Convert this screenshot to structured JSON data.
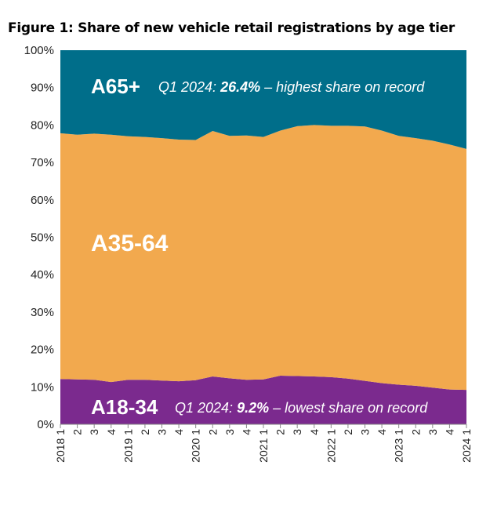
{
  "title": "Figure 1: Share of new vehicle retail registrations by age tier",
  "chart_data": {
    "type": "area",
    "stacked": true,
    "ylim": [
      0,
      100
    ],
    "yunit": "%",
    "yticks": [
      "0%",
      "10%",
      "20%",
      "30%",
      "40%",
      "50%",
      "60%",
      "70%",
      "80%",
      "90%",
      "100%"
    ],
    "x": [
      "2018 1",
      "2",
      "3",
      "4",
      "2019 1",
      "2",
      "3",
      "4",
      "2020 1",
      "2",
      "3",
      "4",
      "2021 1",
      "2",
      "3",
      "4",
      "2022 1",
      "2",
      "3",
      "4",
      "2023 1",
      "2",
      "3",
      "4",
      "2024 1"
    ],
    "series": [
      {
        "name": "A18-34",
        "color": "#7B2A8E",
        "values": [
          12.1,
          12.0,
          11.9,
          11.3,
          11.9,
          11.9,
          11.7,
          11.5,
          11.8,
          12.8,
          12.3,
          11.9,
          12.0,
          13.0,
          12.9,
          12.8,
          12.6,
          12.2,
          11.6,
          11.0,
          10.6,
          10.3,
          9.8,
          9.3,
          9.2
        ]
      },
      {
        "name": "A35-64",
        "color": "#F2A94E",
        "values": [
          65.7,
          65.4,
          65.8,
          66.1,
          65.1,
          64.9,
          64.8,
          64.6,
          64.2,
          65.6,
          64.8,
          65.3,
          64.8,
          65.5,
          66.8,
          67.2,
          67.2,
          67.6,
          68.0,
          67.5,
          66.5,
          66.2,
          66.0,
          65.5,
          64.4
        ]
      },
      {
        "name": "A65+",
        "color": "#006E8A",
        "values": [
          22.2,
          22.6,
          22.3,
          22.6,
          23.0,
          23.2,
          23.5,
          23.9,
          24.0,
          21.6,
          22.9,
          22.8,
          23.2,
          21.5,
          20.3,
          20.0,
          20.2,
          20.2,
          20.4,
          21.5,
          22.9,
          23.5,
          24.2,
          25.2,
          26.4
        ]
      }
    ],
    "annotations": {
      "a65_label": "A65+",
      "a65_note_prefix": "Q1 2024: ",
      "a65_note_value": "26.4%",
      "a65_note_suffix": " – highest share on record",
      "a3564_label": "A35-64",
      "a1834_label": "A18-34",
      "a1834_note_prefix": "Q1 2024: ",
      "a1834_note_value": "9.2%",
      "a1834_note_suffix": " – lowest share on record"
    }
  }
}
